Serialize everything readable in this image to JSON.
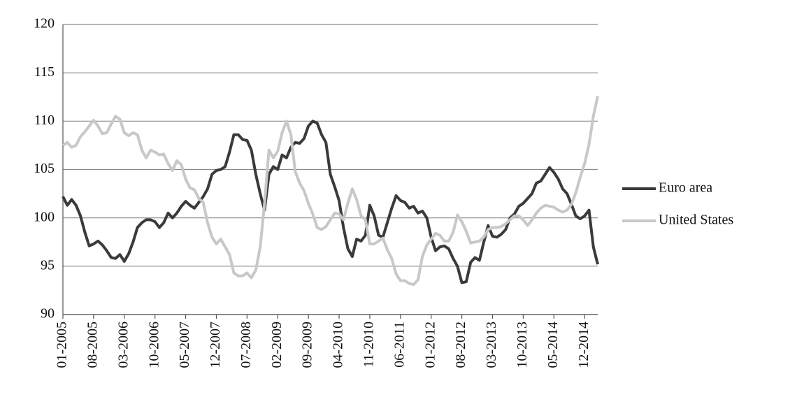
{
  "chart_data": {
    "type": "line",
    "categories": [
      "01-2005",
      null,
      null,
      null,
      null,
      null,
      null,
      "08-2005",
      null,
      null,
      null,
      null,
      null,
      null,
      "03-2006",
      null,
      null,
      null,
      null,
      null,
      null,
      "10-2006",
      null,
      null,
      null,
      null,
      null,
      null,
      "05-2007",
      null,
      null,
      null,
      null,
      null,
      null,
      "12-2007",
      null,
      null,
      null,
      null,
      null,
      null,
      "07-2008",
      null,
      null,
      null,
      null,
      null,
      null,
      "02-2009",
      null,
      null,
      null,
      null,
      null,
      null,
      "09-2009",
      null,
      null,
      null,
      null,
      null,
      null,
      "04-2010",
      null,
      null,
      null,
      null,
      null,
      null,
      "11-2010",
      null,
      null,
      null,
      null,
      null,
      null,
      "06-2011",
      null,
      null,
      null,
      null,
      null,
      null,
      "01-2012",
      null,
      null,
      null,
      null,
      null,
      null,
      "08-2012",
      null,
      null,
      null,
      null,
      null,
      null,
      "03-2013",
      null,
      null,
      null,
      null,
      null,
      null,
      "10-2013",
      null,
      null,
      null,
      null,
      null,
      null,
      "05-2014",
      null,
      null,
      null,
      null,
      null,
      null,
      "12-2014",
      null,
      null,
      null
    ],
    "series": [
      {
        "name": "Euro area",
        "color": "#3a3a3a",
        "values": [
          102.2,
          101.3,
          101.9,
          101.3,
          100.2,
          98.5,
          97.1,
          97.3,
          97.6,
          97.2,
          96.6,
          95.9,
          95.8,
          96.2,
          95.5,
          96.3,
          97.5,
          99.0,
          99.5,
          99.8,
          99.8,
          99.6,
          99.0,
          99.5,
          100.5,
          100.0,
          100.5,
          101.2,
          101.7,
          101.3,
          101.0,
          101.6,
          102.2,
          103.0,
          104.5,
          104.9,
          105.0,
          105.3,
          106.8,
          108.6,
          108.6,
          108.1,
          108.0,
          107.0,
          104.5,
          102.5,
          100.8,
          104.5,
          105.3,
          105.0,
          106.5,
          106.2,
          107.3,
          107.8,
          107.7,
          108.2,
          109.5,
          110.0,
          109.8,
          108.6,
          107.8,
          104.5,
          103.2,
          101.8,
          99.0,
          96.8,
          96.0,
          97.8,
          97.6,
          98.2,
          101.3,
          100.2,
          98.2,
          98.0,
          99.5,
          101.0,
          102.3,
          101.8,
          101.6,
          101.0,
          101.2,
          100.5,
          100.7,
          100.0,
          98.0,
          96.6,
          97.0,
          97.1,
          96.8,
          95.8,
          95.0,
          93.3,
          93.4,
          95.4,
          95.9,
          95.6,
          97.5,
          99.2,
          98.1,
          98.0,
          98.3,
          98.8,
          100.0,
          100.4,
          101.2,
          101.5,
          102.0,
          102.5,
          103.6,
          103.8,
          104.5,
          105.2,
          104.7,
          104.0,
          103.0,
          102.5,
          101.4,
          100.2,
          99.9,
          100.2,
          100.8,
          97.0,
          95.2
        ]
      },
      {
        "name": "United States",
        "color": "#c8c8c8",
        "values": [
          107.5,
          107.8,
          107.3,
          107.5,
          108.4,
          108.9,
          109.5,
          110.1,
          109.5,
          108.7,
          108.8,
          109.7,
          110.5,
          110.2,
          108.8,
          108.5,
          108.8,
          108.6,
          107.0,
          106.2,
          107.0,
          106.8,
          106.5,
          106.6,
          105.6,
          104.9,
          105.9,
          105.5,
          104.0,
          103.1,
          102.9,
          102.0,
          101.6,
          99.5,
          98.0,
          97.3,
          97.8,
          97.0,
          96.2,
          94.3,
          94.0,
          94.0,
          94.3,
          93.8,
          94.6,
          97.0,
          101.5,
          107.0,
          106.2,
          106.9,
          108.8,
          110.0,
          108.6,
          104.8,
          103.6,
          102.8,
          101.5,
          100.4,
          99.0,
          98.8,
          99.1,
          99.8,
          100.5,
          100.4,
          99.8,
          101.5,
          103.0,
          101.9,
          100.2,
          99.8,
          97.3,
          97.3,
          97.6,
          97.9,
          96.7,
          95.8,
          94.2,
          93.5,
          93.5,
          93.2,
          93.1,
          93.6,
          96.0,
          97.2,
          97.8,
          98.4,
          98.2,
          97.6,
          97.6,
          98.5,
          100.3,
          99.6,
          98.6,
          97.4,
          97.5,
          97.6,
          98.0,
          98.8,
          99.0,
          99.0,
          99.1,
          99.4,
          99.8,
          100.2,
          100.2,
          99.8,
          99.2,
          99.8,
          100.5,
          101.0,
          101.3,
          101.2,
          101.1,
          100.8,
          100.6,
          100.8,
          101.4,
          102.6,
          104.2,
          105.6,
          107.6,
          110.5,
          112.6
        ]
      }
    ],
    "ylim": [
      90,
      120
    ],
    "yticks": [
      90,
      95,
      100,
      105,
      110,
      115,
      120
    ],
    "grid": true,
    "legend": "right"
  }
}
